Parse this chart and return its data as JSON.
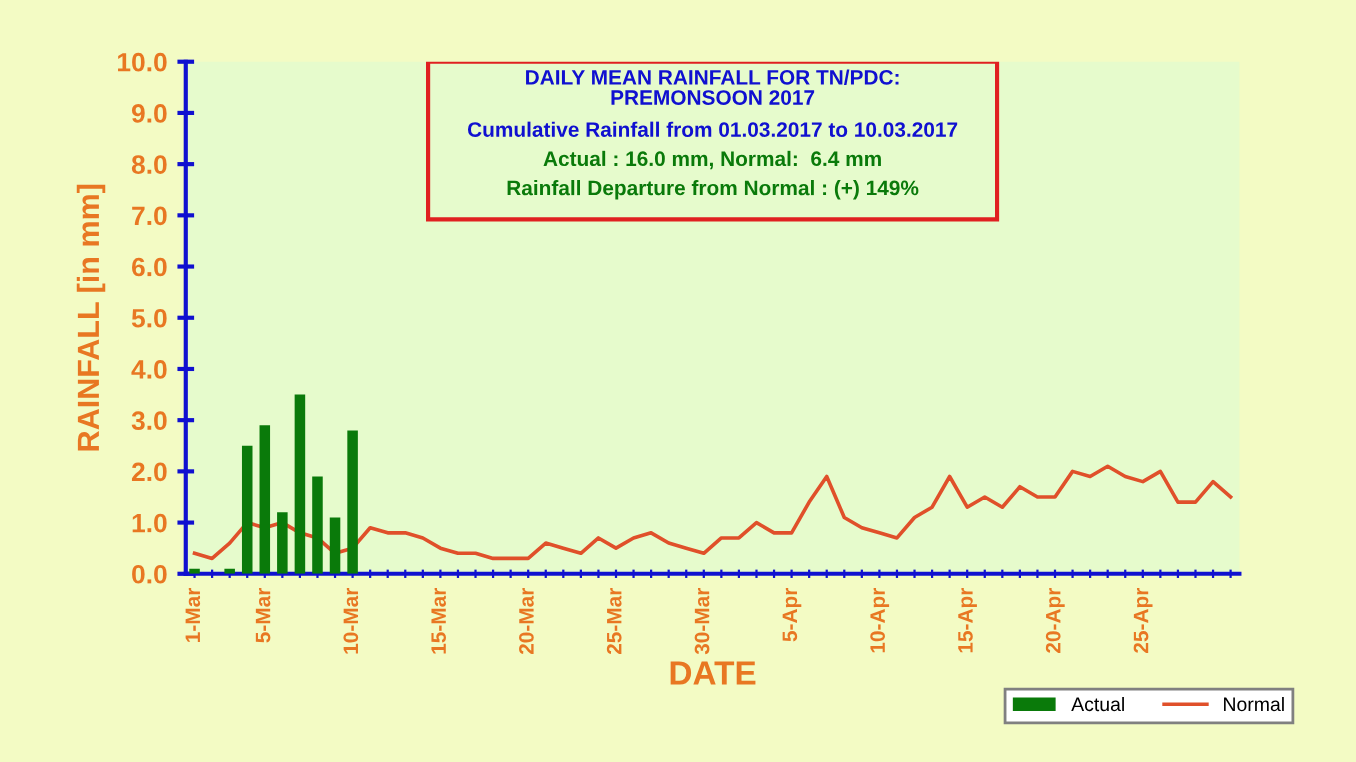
{
  "chart_data": {
    "type": "bar",
    "title": "DAILY MEAN RAINFALL FOR TN/PDC:\nPREMONSOON 2017",
    "subtitle": "Cumulative Rainfall from 01.03.2017 to 10.03.2017",
    "annotations": [
      "Actual : 16.0 mm, Normal:  6.4 mm",
      "Rainfall Departure from Normal : (+) 149%"
    ],
    "xlabel": "DATE",
    "ylabel": "RAINFALL [in mm]",
    "categories": [
      "1-Mar",
      null,
      null,
      null,
      "5-Mar",
      null,
      null,
      null,
      null,
      "10-Mar",
      null,
      null,
      null,
      null,
      "15-Mar",
      null,
      null,
      null,
      null,
      "20-Mar",
      null,
      null,
      null,
      null,
      "25-Mar",
      null,
      null,
      null,
      null,
      "30-Mar",
      null,
      null,
      null,
      null,
      "5-Apr",
      null,
      null,
      null,
      null,
      "10-Apr",
      null,
      null,
      null,
      null,
      "15-Apr",
      null,
      null,
      null,
      null,
      "20-Apr",
      null,
      null,
      null,
      null,
      "25-Apr",
      null,
      null,
      null,
      null,
      null
    ],
    "series": [
      {
        "name": "Actual",
        "color": "#0a7a0a",
        "values": [
          0.1,
          null,
          0.1,
          2.5,
          2.9,
          1.2,
          3.5,
          1.9,
          1.1,
          2.8,
          null,
          null,
          null,
          null,
          null,
          null,
          null,
          null,
          null,
          null,
          null,
          null,
          null,
          null,
          null,
          null,
          null,
          null,
          null,
          null,
          null,
          null,
          null,
          null,
          null,
          null,
          null,
          null,
          null,
          null,
          null,
          null,
          null,
          null,
          null,
          null,
          null,
          null,
          null,
          null,
          null,
          null,
          null,
          null,
          null,
          null,
          null,
          null,
          null,
          null
        ]
      },
      {
        "name": "Normal",
        "type": "line",
        "color": "#e0502a",
        "values": [
          0.4,
          0.3,
          0.6,
          1.0,
          0.9,
          1.0,
          0.8,
          0.7,
          0.4,
          0.5,
          0.9,
          0.8,
          0.8,
          0.7,
          0.5,
          0.4,
          0.4,
          0.3,
          0.3,
          0.3,
          0.6,
          0.5,
          0.4,
          0.7,
          0.5,
          0.7,
          0.8,
          0.6,
          0.5,
          0.4,
          0.7,
          0.7,
          1.0,
          0.8,
          0.8,
          1.4,
          1.9,
          1.1,
          0.9,
          0.8,
          0.7,
          1.1,
          1.3,
          1.9,
          1.3,
          1.5,
          1.3,
          1.7,
          1.5,
          1.5,
          2.0,
          1.9,
          2.1,
          1.9,
          1.8,
          2.0,
          1.4,
          1.4,
          1.8,
          1.5
        ]
      }
    ],
    "ylim": [
      0,
      10
    ],
    "yticks": [
      {
        "value": 0,
        "label": "0.0"
      },
      {
        "value": 1,
        "label": "1.0"
      },
      {
        "value": 2,
        "label": "2.0"
      },
      {
        "value": 3,
        "label": "3.0"
      },
      {
        "value": 4,
        "label": "4.0"
      },
      {
        "value": 5,
        "label": "5.0"
      },
      {
        "value": 6,
        "label": "6.0"
      },
      {
        "value": 7,
        "label": "7.0"
      },
      {
        "value": 8,
        "label": "8.0"
      },
      {
        "value": 9,
        "label": "9.0"
      },
      {
        "value": 10,
        "label": "10.0"
      }
    ],
    "legend": "bottom right"
  }
}
